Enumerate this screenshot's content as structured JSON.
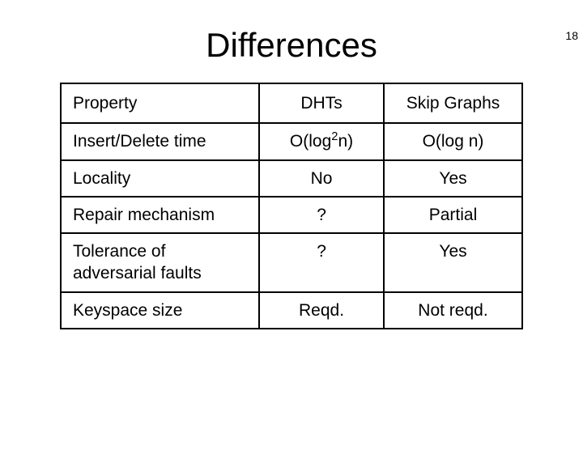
{
  "page_number": "18",
  "title": "Differences",
  "table": {
    "headers": [
      "Property",
      "DHTs",
      "Skip Graphs"
    ],
    "rows": [
      {
        "property": "Insert/Delete time",
        "dhts_html": "O(log<span class=\"sup\">2</span>n)",
        "skip": "O(log n)"
      },
      {
        "property": "Locality",
        "dhts": "No",
        "skip": "Yes"
      },
      {
        "property": "Repair mechanism",
        "dhts": "?",
        "skip": "Partial"
      },
      {
        "property": "Tolerance of adversarial faults",
        "dhts": "?",
        "skip": "Yes"
      },
      {
        "property": "Keyspace size",
        "dhts": "Reqd.",
        "skip": "Not reqd."
      }
    ]
  },
  "colors": {
    "background": "#ffffff",
    "text": "#000000",
    "border": "#000000"
  },
  "fonts": {
    "title_size_pt": 42,
    "cell_size_pt": 21,
    "family": "Comic Sans MS"
  }
}
